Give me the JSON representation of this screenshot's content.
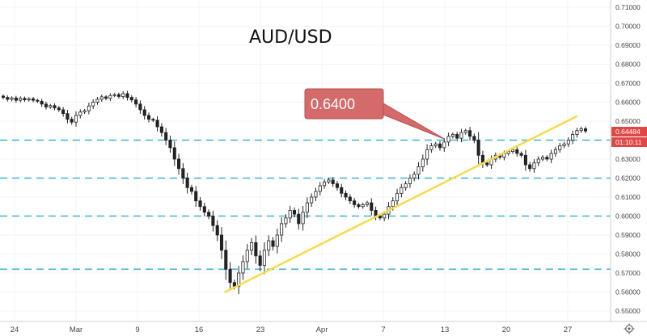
{
  "chart_data": {
    "type": "candlestick",
    "title": "AUD/USD",
    "ylim": [
      0.545,
      0.713
    ],
    "y_ticks": [
      "0.55000",
      "0.56000",
      "0.57000",
      "0.58000",
      "0.59000",
      "0.60000",
      "0.61000",
      "0.62000",
      "0.63000",
      "0.64000",
      "0.65000",
      "0.66000",
      "0.67000",
      "0.68000",
      "0.69000",
      "0.70000",
      "0.71000"
    ],
    "x_ticks": [
      "24",
      "Mar",
      "9",
      "16",
      "23",
      "Apr",
      "7",
      "13",
      "20",
      "27"
    ],
    "levels": [
      0.64,
      0.62,
      0.6,
      0.572
    ],
    "trendline": {
      "from": [
        "2020-03-19",
        0.56
      ],
      "to": [
        "2020-04-28",
        0.6525
      ]
    },
    "callout": {
      "text": "0.6400",
      "points_to": [
        "2020-04-13",
        0.6405
      ]
    },
    "last_price": "0.64484",
    "countdown": "01:10:11",
    "series": [
      {
        "values": [
          0.6625,
          0.6615,
          0.6622,
          0.661,
          0.662,
          0.6612,
          0.6618,
          0.661,
          0.6605,
          0.659,
          0.6575,
          0.6582,
          0.657,
          0.656,
          0.654,
          0.651,
          0.6495,
          0.653,
          0.6548,
          0.6555,
          0.658,
          0.66,
          0.6615,
          0.6628,
          0.662,
          0.6635,
          0.664,
          0.663,
          0.6645,
          0.6625,
          0.6612,
          0.659,
          0.656,
          0.653,
          0.651,
          0.6505,
          0.647,
          0.644,
          0.64,
          0.636,
          0.63,
          0.625,
          0.62,
          0.615,
          0.613,
          0.608,
          0.605,
          0.602,
          0.6,
          0.595,
          0.59,
          0.582,
          0.572,
          0.565,
          0.563,
          0.57,
          0.576,
          0.582,
          0.586,
          0.579,
          0.574,
          0.582,
          0.587,
          0.584,
          0.59,
          0.596,
          0.599,
          0.603,
          0.601,
          0.596,
          0.602,
          0.607,
          0.61,
          0.613,
          0.616,
          0.618,
          0.619,
          0.617,
          0.615,
          0.612,
          0.61,
          0.608,
          0.606,
          0.605,
          0.606,
          0.607,
          0.603,
          0.6,
          0.599,
          0.601,
          0.605,
          0.608,
          0.612,
          0.615,
          0.617,
          0.62,
          0.622,
          0.626,
          0.63,
          0.635,
          0.637,
          0.638,
          0.636,
          0.639,
          0.642,
          0.643,
          0.641,
          0.644,
          0.645,
          0.642,
          0.64,
          0.632,
          0.628,
          0.627,
          0.63,
          0.632,
          0.631,
          0.633,
          0.634,
          0.635,
          0.633,
          0.632,
          0.627,
          0.625,
          0.628,
          0.63,
          0.631,
          0.63,
          0.633,
          0.635,
          0.637,
          0.638,
          0.64,
          0.643,
          0.645,
          0.646,
          0.6448
        ]
      }
    ]
  }
}
